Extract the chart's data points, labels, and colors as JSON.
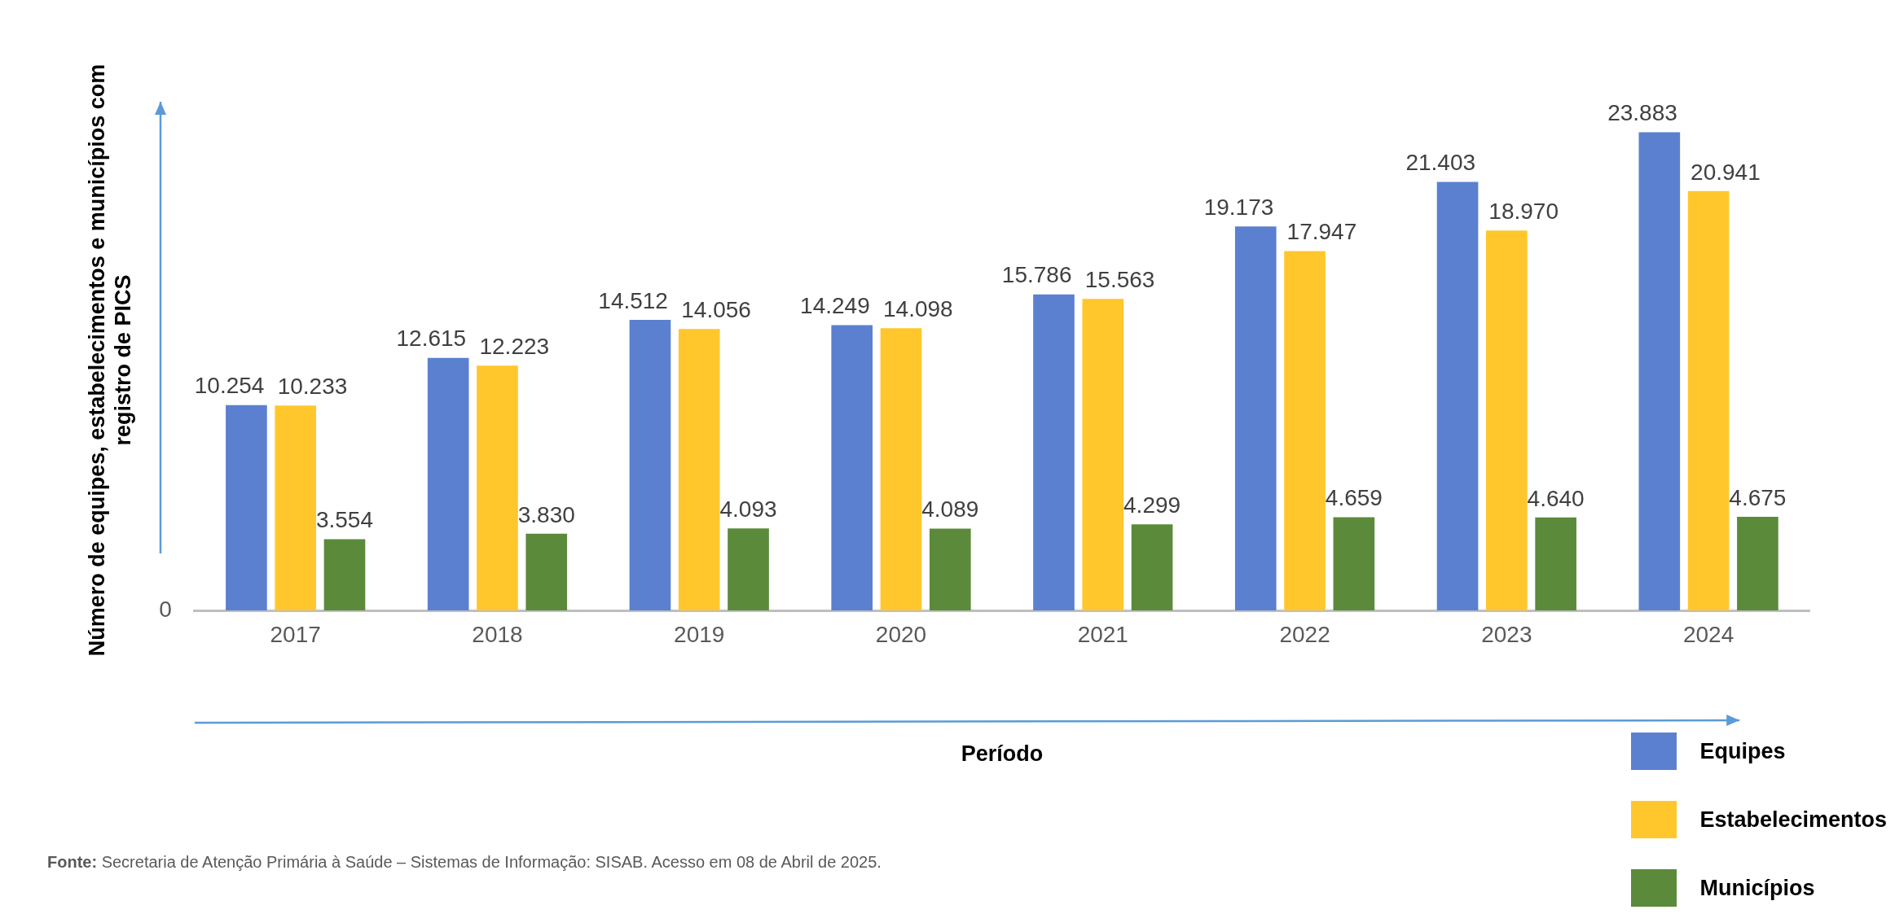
{
  "chart_data": {
    "type": "bar",
    "xlabel": "Período",
    "ylabel": "Número de equipes, estabelecimentos e municípios com registro de PICS",
    "categories": [
      "2017",
      "2018",
      "2019",
      "2020",
      "2021",
      "2022",
      "2023",
      "2024"
    ],
    "series": [
      {
        "name": "Equipes",
        "color": "#5b80d0",
        "values": [
          10254,
          12615,
          14512,
          14249,
          15786,
          19173,
          21403,
          23883
        ],
        "value_labels": [
          "10.254",
          "12.615",
          "14.512",
          "14.249",
          "15.786",
          "19.173",
          "21.403",
          "23.883"
        ]
      },
      {
        "name": "Estabelecimentos",
        "color": "#ffc72c",
        "values": [
          10233,
          12223,
          14056,
          14098,
          15563,
          17947,
          18970,
          20941
        ],
        "value_labels": [
          "10.233",
          "12.223",
          "14.056",
          "14.098",
          "15.563",
          "17.947",
          "18.970",
          "20.941"
        ]
      },
      {
        "name": "Municípios",
        "color": "#5a8a3a",
        "values": [
          3554,
          3830,
          4093,
          4089,
          4299,
          4659,
          4640,
          4675
        ],
        "value_labels": [
          "3.554",
          "3.830",
          "4.093",
          "4.089",
          "4.299",
          "4.659",
          "4.640",
          "4.675"
        ]
      }
    ],
    "grid": false,
    "legend": "bottom right",
    "annotations": [
      "0",
      "Fonte: Secretaria de Atenção Primária à Saúde – Sistemas de Informação: SISAB. Acesso em 08 de Abril de 2025."
    ]
  }
}
